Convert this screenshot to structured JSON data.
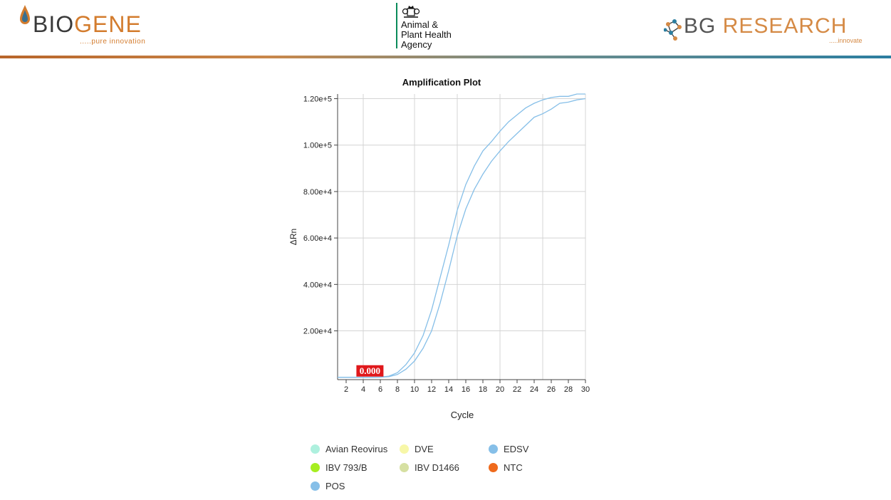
{
  "header": {
    "left_logo": {
      "part1": "BIO",
      "part2": "GENE",
      "tagline": ".....pure innovation"
    },
    "middle_logo": {
      "line1": "Animal &",
      "line2": "Plant Health",
      "line3": "Agency"
    },
    "right_logo": {
      "part1": "BG",
      "part2": " RESEARCH",
      "tagline": ".....innovate"
    }
  },
  "chart_data": {
    "type": "line",
    "title": "Amplification Plot",
    "xlabel": "Cycle",
    "ylabel": "ΔRn",
    "xlim": [
      1,
      30
    ],
    "ylim": [
      -1000,
      122000
    ],
    "xticks": [
      2,
      4,
      6,
      8,
      10,
      12,
      14,
      16,
      18,
      20,
      22,
      24,
      26,
      28,
      30
    ],
    "yticks": [
      20000,
      40000,
      60000,
      80000,
      100000,
      120000
    ],
    "ytick_labels": [
      "2.00e+4",
      "4.00e+4",
      "6.00e+4",
      "8.00e+4",
      "1.00e+5",
      "1.20e+5"
    ],
    "grid": true,
    "threshold_label": "0.000",
    "threshold_label_color": "#e0181b",
    "legend": [
      {
        "name": "Avian Reovirus",
        "color": "#aef0de"
      },
      {
        "name": "DVE",
        "color": "#f7f7a8"
      },
      {
        "name": "EDSV",
        "color": "#86bfe8"
      },
      {
        "name": "IBV 793/B",
        "color": "#a6ee20"
      },
      {
        "name": "IBV D1466",
        "color": "#d6e0a2"
      },
      {
        "name": "NTC",
        "color": "#ef6a1c"
      },
      {
        "name": "POS",
        "color": "#86bfe8"
      }
    ],
    "series": [
      {
        "name": "POS",
        "color": "#86bfe8",
        "x": [
          1,
          2,
          3,
          4,
          5,
          6,
          7,
          8,
          9,
          10,
          11,
          12,
          13,
          14,
          15,
          16,
          17,
          18,
          19,
          20,
          21,
          22,
          23,
          24,
          25,
          26,
          27,
          28,
          29,
          30
        ],
        "values": [
          0,
          0,
          0,
          0,
          0,
          100,
          500,
          2000,
          5500,
          10500,
          18000,
          29000,
          43000,
          57000,
          72000,
          83000,
          91000,
          97500,
          101500,
          106000,
          110000,
          113000,
          116000,
          118000,
          119500,
          120500,
          121000,
          121000,
          122000,
          122000
        ]
      },
      {
        "name": "POS",
        "color": "#86bfe8",
        "x": [
          1,
          2,
          3,
          4,
          5,
          6,
          7,
          8,
          9,
          10,
          11,
          12,
          13,
          14,
          15,
          16,
          17,
          18,
          19,
          20,
          21,
          22,
          23,
          24,
          25,
          26,
          27,
          28,
          29,
          30
        ],
        "values": [
          0,
          0,
          0,
          0,
          0,
          50,
          300,
          1200,
          3500,
          7000,
          12500,
          20000,
          32000,
          46000,
          61000,
          72500,
          81000,
          87500,
          93000,
          97500,
          101500,
          105000,
          108500,
          112000,
          113500,
          115500,
          118000,
          118500,
          119500,
          120000
        ]
      }
    ]
  }
}
